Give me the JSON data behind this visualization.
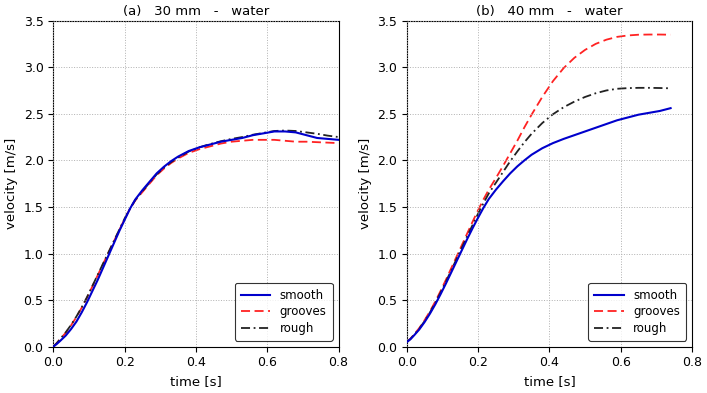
{
  "title_a": "(a)   30 mm   -   water",
  "title_b": "(b)   40 mm   -   water",
  "xlabel": "time [s]",
  "ylabel": "velocity [m/s]",
  "xlim_a": [
    0,
    0.8
  ],
  "xlim_b": [
    0,
    0.8
  ],
  "ylim": [
    0,
    3.5
  ],
  "yticks": [
    0,
    0.5,
    1.0,
    1.5,
    2.0,
    2.5,
    3.0,
    3.5
  ],
  "xticks": [
    0,
    0.2,
    0.4,
    0.6,
    0.8
  ],
  "smooth_color": "#0000cc",
  "grooves_color": "#ff2222",
  "rough_color": "#222222",
  "background_color": "#ffffff",
  "legend_labels": [
    "smooth",
    "grooves",
    "rough"
  ],
  "a_smooth_t": [
    0.0,
    0.01,
    0.02,
    0.035,
    0.05,
    0.065,
    0.08,
    0.095,
    0.11,
    0.125,
    0.14,
    0.155,
    0.17,
    0.185,
    0.2,
    0.215,
    0.23,
    0.25,
    0.27,
    0.29,
    0.31,
    0.33,
    0.35,
    0.38,
    0.41,
    0.44,
    0.47,
    0.5,
    0.53,
    0.56,
    0.59,
    0.62,
    0.65,
    0.68,
    0.71,
    0.74,
    0.77,
    0.8
  ],
  "a_smooth_v": [
    0.0,
    0.03,
    0.065,
    0.12,
    0.19,
    0.27,
    0.37,
    0.48,
    0.6,
    0.72,
    0.85,
    0.98,
    1.11,
    1.24,
    1.36,
    1.48,
    1.58,
    1.68,
    1.77,
    1.86,
    1.93,
    1.99,
    2.04,
    2.1,
    2.14,
    2.17,
    2.2,
    2.22,
    2.24,
    2.27,
    2.29,
    2.31,
    2.31,
    2.3,
    2.27,
    2.24,
    2.23,
    2.22
  ],
  "a_grooves_t": [
    0.0,
    0.01,
    0.02,
    0.035,
    0.05,
    0.065,
    0.08,
    0.095,
    0.11,
    0.125,
    0.14,
    0.155,
    0.17,
    0.185,
    0.2,
    0.215,
    0.23,
    0.25,
    0.27,
    0.29,
    0.31,
    0.33,
    0.35,
    0.38,
    0.41,
    0.44,
    0.47,
    0.5,
    0.53,
    0.56,
    0.59,
    0.62,
    0.65,
    0.68,
    0.71,
    0.74,
    0.77,
    0.8
  ],
  "a_grooves_v": [
    0.0,
    0.04,
    0.085,
    0.15,
    0.23,
    0.32,
    0.42,
    0.53,
    0.65,
    0.77,
    0.89,
    1.01,
    1.13,
    1.25,
    1.37,
    1.48,
    1.57,
    1.66,
    1.75,
    1.84,
    1.91,
    1.97,
    2.02,
    2.08,
    2.12,
    2.15,
    2.18,
    2.2,
    2.21,
    2.22,
    2.22,
    2.22,
    2.21,
    2.2,
    2.2,
    2.195,
    2.19,
    2.185
  ],
  "a_rough_t": [
    0.0,
    0.01,
    0.02,
    0.035,
    0.05,
    0.065,
    0.08,
    0.095,
    0.11,
    0.125,
    0.14,
    0.155,
    0.17,
    0.185,
    0.2,
    0.215,
    0.23,
    0.25,
    0.27,
    0.29,
    0.31,
    0.33,
    0.35,
    0.38,
    0.41,
    0.44,
    0.47,
    0.5,
    0.53,
    0.56,
    0.59,
    0.62,
    0.65,
    0.68,
    0.71,
    0.74,
    0.77,
    0.8
  ],
  "a_rough_v": [
    0.0,
    0.04,
    0.085,
    0.155,
    0.235,
    0.325,
    0.425,
    0.535,
    0.655,
    0.775,
    0.895,
    1.015,
    1.135,
    1.255,
    1.375,
    1.48,
    1.575,
    1.67,
    1.76,
    1.85,
    1.92,
    1.98,
    2.03,
    2.095,
    2.14,
    2.175,
    2.205,
    2.23,
    2.25,
    2.275,
    2.295,
    2.315,
    2.32,
    2.315,
    2.3,
    2.285,
    2.265,
    2.25
  ],
  "b_smooth_t": [
    0.0,
    0.01,
    0.02,
    0.035,
    0.05,
    0.065,
    0.08,
    0.095,
    0.11,
    0.125,
    0.14,
    0.155,
    0.17,
    0.185,
    0.2,
    0.215,
    0.23,
    0.25,
    0.27,
    0.29,
    0.31,
    0.33,
    0.35,
    0.38,
    0.41,
    0.44,
    0.47,
    0.5,
    0.53,
    0.56,
    0.59,
    0.62,
    0.65,
    0.68,
    0.71,
    0.74
  ],
  "b_smooth_v": [
    0.05,
    0.08,
    0.12,
    0.185,
    0.265,
    0.355,
    0.455,
    0.565,
    0.68,
    0.8,
    0.92,
    1.04,
    1.16,
    1.275,
    1.385,
    1.49,
    1.585,
    1.685,
    1.775,
    1.86,
    1.935,
    2.0,
    2.06,
    2.13,
    2.185,
    2.23,
    2.27,
    2.31,
    2.35,
    2.39,
    2.43,
    2.46,
    2.49,
    2.51,
    2.53,
    2.56
  ],
  "b_grooves_t": [
    0.0,
    0.01,
    0.02,
    0.035,
    0.05,
    0.065,
    0.08,
    0.095,
    0.11,
    0.125,
    0.14,
    0.155,
    0.17,
    0.185,
    0.2,
    0.215,
    0.23,
    0.25,
    0.27,
    0.29,
    0.31,
    0.33,
    0.35,
    0.38,
    0.41,
    0.44,
    0.47,
    0.5,
    0.53,
    0.56,
    0.59,
    0.62,
    0.65,
    0.68,
    0.71,
    0.74
  ],
  "b_grooves_v": [
    0.05,
    0.085,
    0.13,
    0.2,
    0.285,
    0.38,
    0.485,
    0.6,
    0.72,
    0.845,
    0.97,
    1.095,
    1.22,
    1.345,
    1.465,
    1.58,
    1.685,
    1.81,
    1.94,
    2.075,
    2.21,
    2.355,
    2.49,
    2.68,
    2.85,
    2.99,
    3.1,
    3.185,
    3.25,
    3.295,
    3.325,
    3.34,
    3.348,
    3.35,
    3.35,
    3.348
  ],
  "b_rough_t": [
    0.0,
    0.01,
    0.02,
    0.035,
    0.05,
    0.065,
    0.08,
    0.095,
    0.11,
    0.125,
    0.14,
    0.155,
    0.17,
    0.185,
    0.2,
    0.215,
    0.23,
    0.25,
    0.27,
    0.29,
    0.31,
    0.33,
    0.35,
    0.38,
    0.41,
    0.44,
    0.47,
    0.5,
    0.53,
    0.56,
    0.59,
    0.62,
    0.65,
    0.68,
    0.71,
    0.74
  ],
  "b_rough_v": [
    0.05,
    0.082,
    0.125,
    0.193,
    0.275,
    0.368,
    0.47,
    0.582,
    0.7,
    0.822,
    0.945,
    1.068,
    1.19,
    1.31,
    1.428,
    1.54,
    1.645,
    1.76,
    1.875,
    1.99,
    2.095,
    2.195,
    2.285,
    2.4,
    2.495,
    2.57,
    2.63,
    2.68,
    2.72,
    2.75,
    2.768,
    2.775,
    2.778,
    2.778,
    2.776,
    2.773
  ]
}
